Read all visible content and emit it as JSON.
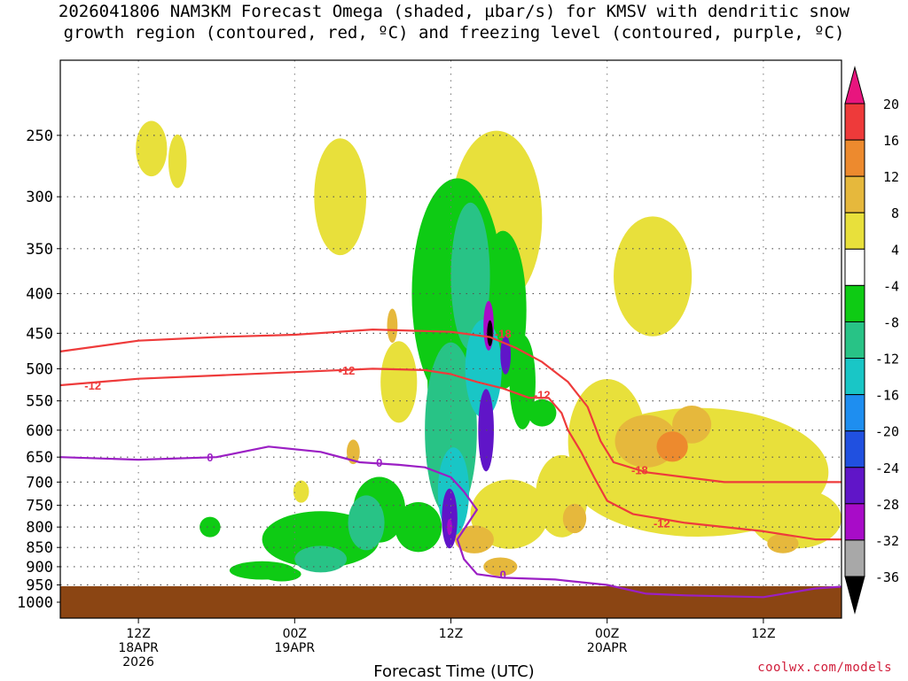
{
  "header": {
    "title_line1": "2026041806 NAM3KM Forecast Omega (shaded, µbar/s) for KMSV with dendritic snow",
    "title_line2": "growth region (contoured, red, ºC) and freezing level (contoured, purple, ºC)"
  },
  "footer": {
    "xlabel": "Forecast Time (UTC)",
    "credit": "coolwx.com/models"
  },
  "colors": {
    "ground": "#8b4513",
    "dgz_contour": "#ee3b3b",
    "freezing_contour": "#9b1fc4"
  },
  "chart_data": {
    "type": "heatmap",
    "title": "2026041806 NAM3KM Forecast Omega (shaded, µbar/s) for KMSV with dendritic snow growth region (contoured, red, ºC) and freezing level (contoured, purple, ºC)",
    "xlabel": "Forecast Time (UTC)",
    "ylabel": "",
    "y_axis": {
      "type": "log",
      "inverted": true,
      "range": [
        200,
        1000
      ],
      "ticks": [
        250,
        300,
        350,
        400,
        450,
        500,
        550,
        600,
        650,
        700,
        750,
        800,
        850,
        900,
        950,
        1000
      ]
    },
    "x_axis": {
      "range_hours": [
        6,
        66
      ],
      "ticks": [
        {
          "hour": 12,
          "lines": [
            "12Z",
            "18APR",
            "2026"
          ]
        },
        {
          "hour": 24,
          "lines": [
            "00Z",
            "19APR"
          ]
        },
        {
          "hour": 36,
          "lines": [
            "12Z"
          ]
        },
        {
          "hour": 48,
          "lines": [
            "00Z",
            "20APR"
          ]
        },
        {
          "hour": 60,
          "lines": [
            "12Z"
          ]
        }
      ]
    },
    "grid": true,
    "colorbar": {
      "labels": [
        "20",
        "16",
        "12",
        "8",
        "4",
        "-4",
        "-8",
        "-12",
        "-16",
        "-20",
        "-24",
        "-28",
        "-32",
        "-36"
      ],
      "colors": [
        "#e8157e",
        "#ee3a3a",
        "#ed8a2e",
        "#e6b83c",
        "#e8e03b",
        "#ffffff",
        "#0ecb14",
        "#28c386",
        "#19c6c6",
        "#1e8ef0",
        "#2050e0",
        "#6015c8",
        "#a80cc8",
        "#a8a8a8",
        "#000000"
      ]
    },
    "omega_regions": [
      {
        "x": 13.0,
        "p": 260,
        "rx": 1.2,
        "ry_p": 40,
        "value": 5
      },
      {
        "x": 15.0,
        "p": 270,
        "rx": 0.7,
        "ry_p": 40,
        "value": 5
      },
      {
        "x": 27.5,
        "p": 300,
        "rx": 2.0,
        "ry_p": 100,
        "value": 5
      },
      {
        "x": 39.5,
        "p": 320,
        "rx": 3.5,
        "ry_p": 160,
        "value": 5
      },
      {
        "x": 51.5,
        "p": 380,
        "rx": 3.0,
        "ry_p": 130,
        "value": 5
      },
      {
        "x": 55.0,
        "p": 680,
        "rx": 10.0,
        "ry_p": 250,
        "value": 5
      },
      {
        "x": 48.0,
        "p": 620,
        "rx": 3.0,
        "ry_p": 220,
        "value": 5
      },
      {
        "x": 44.5,
        "p": 730,
        "rx": 2.0,
        "ry_p": 170,
        "value": 5
      },
      {
        "x": 40.5,
        "p": 770,
        "rx": 3.0,
        "ry_p": 150,
        "value": 5
      },
      {
        "x": 32.0,
        "p": 520,
        "rx": 1.4,
        "ry_p": 120,
        "value": 5
      },
      {
        "x": 24.5,
        "p": 720,
        "rx": 0.6,
        "ry_p": 40,
        "value": 5
      },
      {
        "x": 62.5,
        "p": 780,
        "rx": 3.5,
        "ry_p": 130,
        "value": 5
      },
      {
        "x": 51.0,
        "p": 620,
        "rx": 2.4,
        "ry_p": 90,
        "value": 10
      },
      {
        "x": 53.0,
        "p": 630,
        "rx": 1.2,
        "ry_p": 50,
        "value": 13
      },
      {
        "x": 54.5,
        "p": 590,
        "rx": 1.5,
        "ry_p": 60,
        "value": 10
      },
      {
        "x": 37.8,
        "p": 830,
        "rx": 1.5,
        "ry_p": 60,
        "value": 10
      },
      {
        "x": 39.8,
        "p": 900,
        "rx": 1.3,
        "ry_p": 40,
        "value": 10
      },
      {
        "x": 45.5,
        "p": 780,
        "rx": 0.9,
        "ry_p": 60,
        "value": 10
      },
      {
        "x": 28.5,
        "p": 640,
        "rx": 0.5,
        "ry_p": 40,
        "value": 10
      },
      {
        "x": 61.5,
        "p": 840,
        "rx": 1.2,
        "ry_p": 40,
        "value": 10
      },
      {
        "x": 31.5,
        "p": 440,
        "rx": 0.4,
        "ry_p": 40,
        "value": 10
      },
      {
        "x": 21.5,
        "p": 910,
        "rx": 2.5,
        "ry_p": 40,
        "value": -6
      },
      {
        "x": 26.0,
        "p": 830,
        "rx": 4.5,
        "ry_p": 130,
        "value": -6
      },
      {
        "x": 30.5,
        "p": 760,
        "rx": 2.0,
        "ry_p": 140,
        "value": -6
      },
      {
        "x": 33.5,
        "p": 800,
        "rx": 1.8,
        "ry_p": 110,
        "value": -6
      },
      {
        "x": 17.5,
        "p": 800,
        "rx": 0.8,
        "ry_p": 40,
        "value": -6
      },
      {
        "x": 23.0,
        "p": 920,
        "rx": 1.5,
        "ry_p": 30,
        "value": -8
      },
      {
        "x": 34.8,
        "p": 510,
        "rx": 0.6,
        "ry_p": 180,
        "value": -6
      },
      {
        "x": 36.5,
        "p": 400,
        "rx": 3.5,
        "ry_p": 260,
        "value": -6
      },
      {
        "x": 40.0,
        "p": 420,
        "rx": 1.8,
        "ry_p": 190,
        "value": -6
      },
      {
        "x": 41.5,
        "p": 520,
        "rx": 1.0,
        "ry_p": 140,
        "value": -6
      },
      {
        "x": 43.0,
        "p": 570,
        "rx": 1.1,
        "ry_p": 40,
        "value": -6
      },
      {
        "x": 29.5,
        "p": 790,
        "rx": 1.4,
        "ry_p": 120,
        "value": -10
      },
      {
        "x": 26.0,
        "p": 880,
        "rx": 2.0,
        "ry_p": 60,
        "value": -10
      },
      {
        "x": 36.0,
        "p": 600,
        "rx": 2.0,
        "ry_p": 300,
        "value": -12
      },
      {
        "x": 37.5,
        "p": 380,
        "rx": 1.5,
        "ry_p": 160,
        "value": -12
      },
      {
        "x": 36.2,
        "p": 720,
        "rx": 1.2,
        "ry_p": 180,
        "value": -16
      },
      {
        "x": 38.5,
        "p": 500,
        "rx": 1.4,
        "ry_p": 140,
        "value": -16
      },
      {
        "x": 35.9,
        "p": 780,
        "rx": 0.6,
        "ry_p": 130,
        "value": -26
      },
      {
        "x": 38.7,
        "p": 600,
        "rx": 0.6,
        "ry_p": 140,
        "value": -26
      },
      {
        "x": 40.2,
        "p": 480,
        "rx": 0.4,
        "ry_p": 50,
        "value": -28
      },
      {
        "x": 38.9,
        "p": 440,
        "rx": 0.4,
        "ry_p": 60,
        "value": -32
      },
      {
        "x": 35.9,
        "p": 800,
        "rx": 0.2,
        "ry_p": 30,
        "value": -32
      },
      {
        "x": 39.0,
        "p": 450,
        "rx": 0.22,
        "ry_p": 30,
        "value": -38
      }
    ],
    "series": [
      {
        "color": "#ee3b3b",
        "contour_labels": [
          {
            "text": "-18",
            "hour": 40.0,
            "p": 450
          },
          {
            "text": "-18",
            "hour": 50.5,
            "p": 675
          }
        ],
        "points": [
          [
            6,
            475
          ],
          [
            12,
            460
          ],
          [
            18,
            455
          ],
          [
            24,
            452
          ],
          [
            30,
            445
          ],
          [
            36,
            448
          ],
          [
            39,
            455
          ],
          [
            41,
            470
          ],
          [
            43,
            490
          ],
          [
            45,
            520
          ],
          [
            46.5,
            560
          ],
          [
            47.5,
            620
          ],
          [
            48.5,
            660
          ],
          [
            51,
            680
          ],
          [
            54,
            690
          ],
          [
            57,
            700
          ],
          [
            60,
            700
          ],
          [
            66,
            700
          ]
        ]
      },
      {
        "color": "#ee3b3b",
        "contour_labels": [
          {
            "text": "-12",
            "hour": 8.5,
            "p": 525
          },
          {
            "text": "-12",
            "hour": 28.0,
            "p": 502
          },
          {
            "text": "-12",
            "hour": 43.0,
            "p": 540
          },
          {
            "text": "-12",
            "hour": 52.2,
            "p": 790
          }
        ],
        "points": [
          [
            6,
            525
          ],
          [
            12,
            515
          ],
          [
            18,
            510
          ],
          [
            24,
            505
          ],
          [
            30,
            500
          ],
          [
            34,
            502
          ],
          [
            36,
            508
          ],
          [
            38,
            520
          ],
          [
            40,
            530
          ],
          [
            42,
            545
          ],
          [
            43.5,
            545
          ],
          [
            44.5,
            570
          ],
          [
            45,
            600
          ],
          [
            46,
            640
          ],
          [
            47,
            690
          ],
          [
            48,
            740
          ],
          [
            50,
            770
          ],
          [
            54,
            790
          ],
          [
            60,
            810
          ],
          [
            64,
            830
          ],
          [
            66,
            830
          ]
        ]
      },
      {
        "color": "#9b1fc4",
        "contour_labels": [
          {
            "text": "0",
            "hour": 17.5,
            "p": 650
          },
          {
            "text": "0",
            "hour": 30.5,
            "p": 660
          },
          {
            "text": "0",
            "hour": 40.0,
            "p": 920
          }
        ],
        "points": [
          [
            6,
            650
          ],
          [
            12,
            655
          ],
          [
            18,
            650
          ],
          [
            22,
            630
          ],
          [
            26,
            640
          ],
          [
            29,
            660
          ],
          [
            32,
            665
          ],
          [
            34,
            670
          ],
          [
            36,
            690
          ],
          [
            37,
            720
          ],
          [
            38,
            760
          ],
          [
            36.5,
            830
          ],
          [
            37,
            880
          ],
          [
            38,
            920
          ],
          [
            40,
            930
          ],
          [
            44,
            935
          ],
          [
            48,
            950
          ],
          [
            51,
            975
          ],
          [
            54,
            980
          ],
          [
            60,
            985
          ],
          [
            64,
            960
          ],
          [
            66,
            955
          ]
        ]
      }
    ]
  }
}
